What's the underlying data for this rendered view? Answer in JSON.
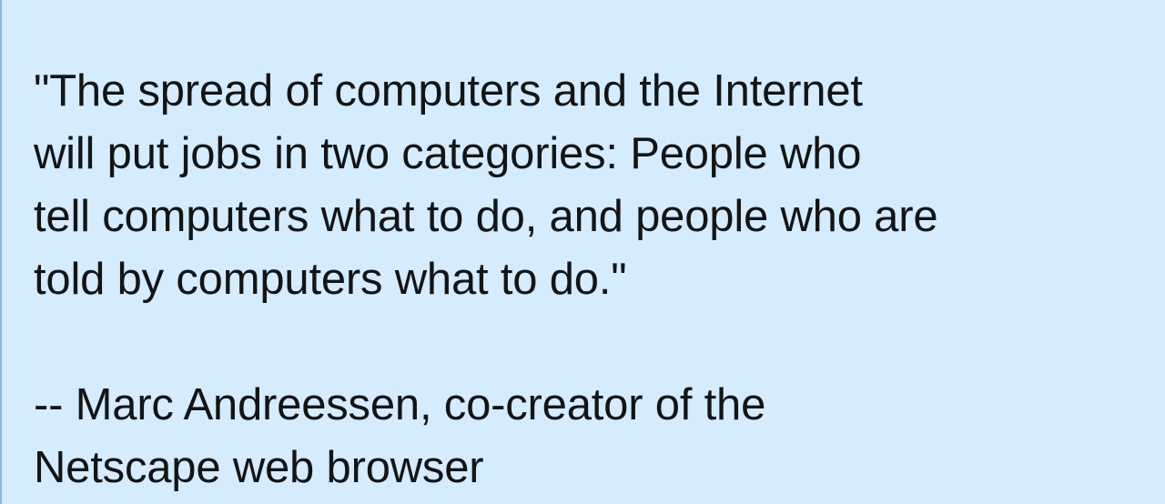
{
  "quote": {
    "lines": [
      "\"The spread of computers and the Internet",
      "will put jobs in two categories: People who",
      "tell computers what to do, and people who are",
      "told by computers what to do.\""
    ]
  },
  "attribution": {
    "lines": [
      "-- Marc Andreessen, co-creator of the",
      "Netscape web browser"
    ]
  },
  "colors": {
    "background": "#d4ecfe",
    "text": "#141414",
    "left_border": "#8fbbe0"
  }
}
